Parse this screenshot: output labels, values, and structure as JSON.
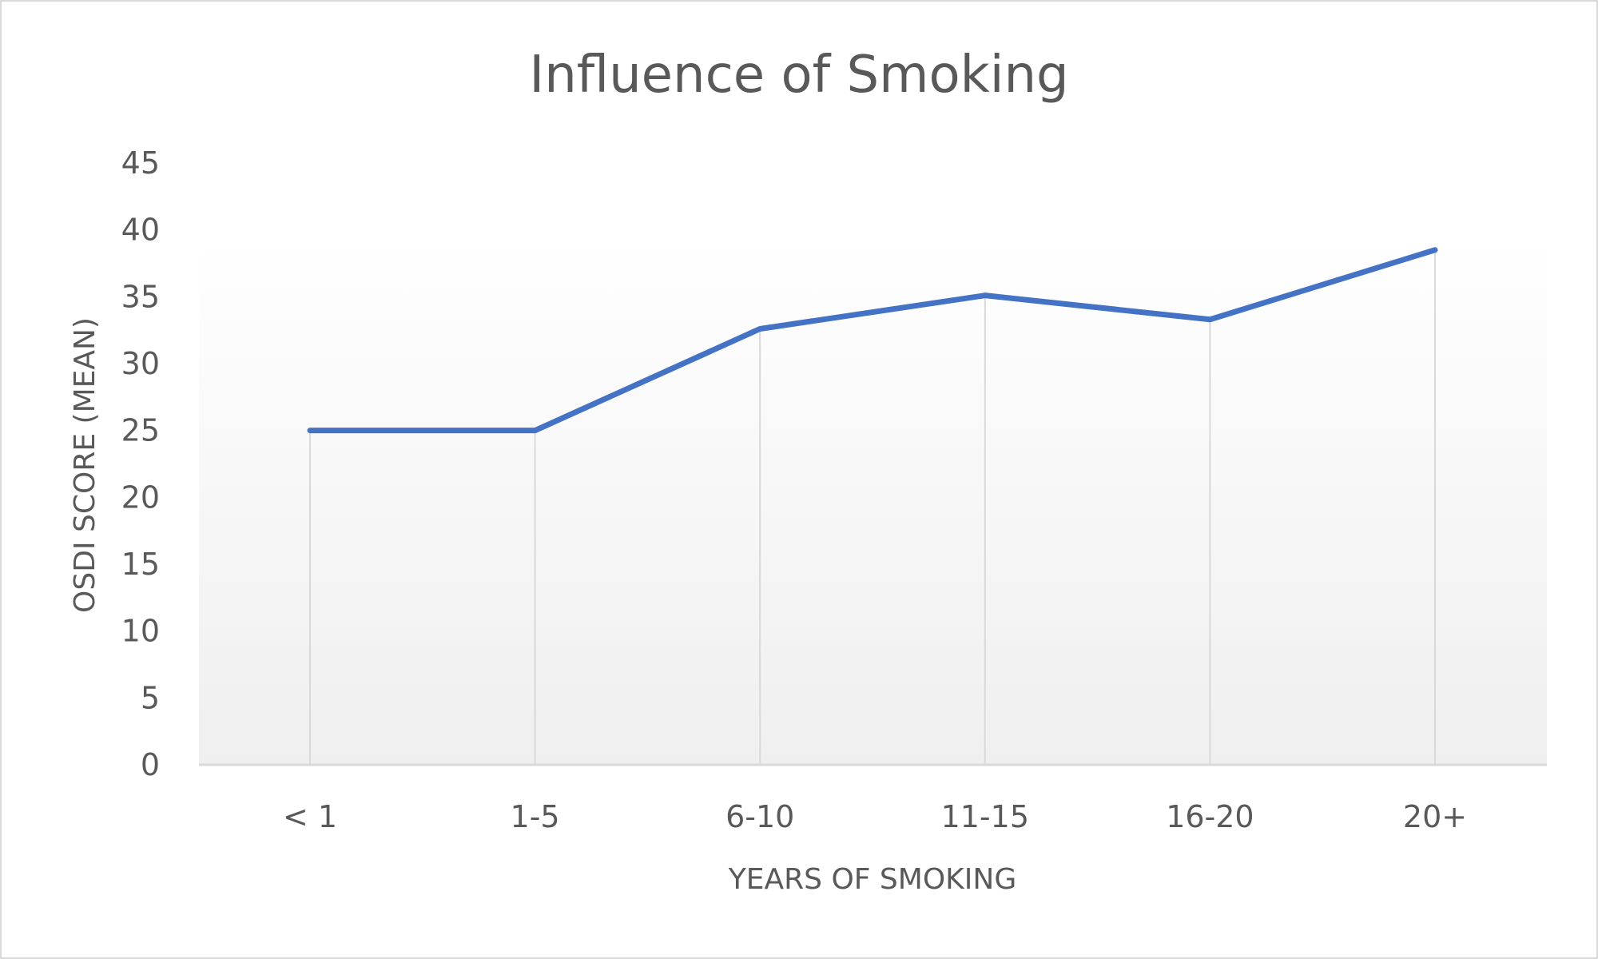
{
  "chart_data": {
    "type": "line",
    "title": "Influence of Smoking",
    "xlabel": "YEARS OF SMOKING",
    "ylabel": "OSDI SCORE (MEAN)",
    "categories": [
      "< 1",
      "1-5",
      "6-10",
      "11-15",
      "16-20",
      "20+"
    ],
    "series": [
      {
        "name": "OSDI score (mean)",
        "values": [
          25,
          25,
          32.6,
          35.1,
          33.3,
          38.5
        ],
        "color": "#4472c4"
      }
    ],
    "ylim": [
      0,
      45
    ],
    "yticks": [
      "0",
      "5",
      "10",
      "15",
      "20",
      "25",
      "30",
      "35",
      "40",
      "45"
    ],
    "grid": "vertical drop lines",
    "legend": "none"
  }
}
